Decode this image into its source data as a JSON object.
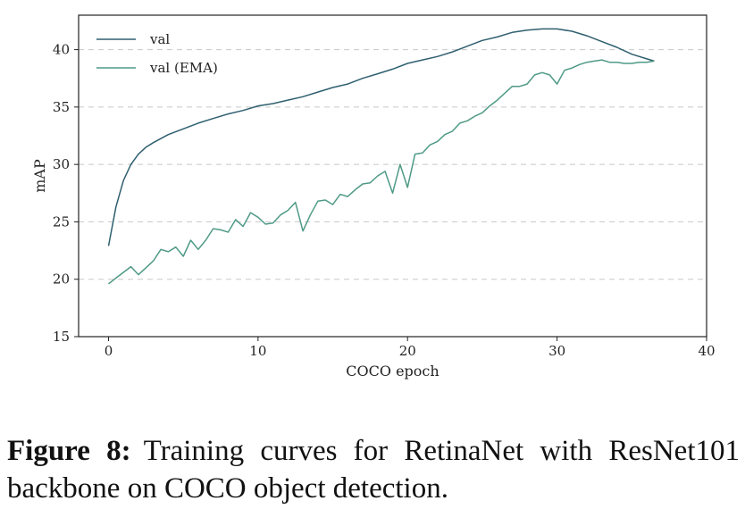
{
  "chart_data": {
    "type": "line",
    "xlabel": "COCO epoch",
    "ylabel": "mAP",
    "xlim": [
      -2,
      40
    ],
    "ylim": [
      15,
      43
    ],
    "xticks": [
      0,
      10,
      20,
      30,
      40
    ],
    "yticks": [
      15,
      20,
      25,
      30,
      35,
      40
    ],
    "grid": "horizontal dashed",
    "legend_position": "top-left",
    "series": [
      {
        "name": "val",
        "color": "#2f5f6f",
        "x": [
          0,
          0.5,
          1,
          1.5,
          2,
          2.5,
          3,
          4,
          5,
          6,
          7,
          8,
          9,
          10,
          11,
          12,
          13,
          14,
          15,
          16,
          17,
          18,
          19,
          20,
          21,
          22,
          23,
          24,
          25,
          26,
          27,
          28,
          29,
          30,
          31,
          32,
          33,
          34,
          35,
          36,
          36.5
        ],
        "y": [
          22.9,
          26.3,
          28.6,
          30.0,
          30.9,
          31.5,
          31.9,
          32.6,
          33.1,
          33.6,
          34.0,
          34.4,
          34.7,
          35.1,
          35.3,
          35.6,
          35.9,
          36.3,
          36.7,
          37.0,
          37.5,
          37.9,
          38.3,
          38.8,
          39.1,
          39.4,
          39.8,
          40.3,
          40.8,
          41.1,
          41.5,
          41.7,
          41.8,
          41.8,
          41.6,
          41.2,
          40.7,
          40.2,
          39.6,
          39.2,
          39.0
        ]
      },
      {
        "name": "val (EMA)",
        "color": "#4f9a86",
        "x": [
          0,
          0.5,
          1,
          1.5,
          2,
          2.5,
          3,
          3.5,
          4,
          4.5,
          5,
          5.5,
          6,
          6.5,
          7,
          7.5,
          8,
          8.5,
          9,
          9.5,
          10,
          10.5,
          11,
          11.5,
          12,
          12.5,
          13,
          13.5,
          14,
          14.5,
          15,
          15.5,
          16,
          16.5,
          17,
          17.5,
          18,
          18.5,
          19,
          19.5,
          20,
          20.5,
          21,
          21.5,
          22,
          22.5,
          23,
          23.5,
          24,
          24.5,
          25,
          25.5,
          26,
          26.5,
          27,
          27.5,
          28,
          28.5,
          29,
          29.5,
          30,
          30.5,
          31,
          31.5,
          32,
          32.5,
          33,
          33.5,
          34,
          34.5,
          35,
          35.5,
          36,
          36.5
        ],
        "y": [
          19.6,
          20.1,
          20.6,
          21.1,
          20.4,
          21.0,
          21.6,
          22.6,
          22.4,
          22.8,
          22.0,
          23.4,
          22.6,
          23.4,
          24.4,
          24.3,
          24.1,
          25.2,
          24.6,
          25.8,
          25.4,
          24.8,
          24.9,
          25.6,
          26.0,
          26.7,
          24.2,
          25.6,
          26.8,
          26.9,
          26.5,
          27.4,
          27.2,
          27.8,
          28.3,
          28.4,
          29.0,
          29.4,
          27.5,
          30.0,
          28.0,
          30.9,
          31.0,
          31.7,
          32.0,
          32.6,
          32.9,
          33.6,
          33.8,
          34.2,
          34.5,
          35.1,
          35.6,
          36.2,
          36.8,
          36.8,
          37.0,
          37.8,
          38.0,
          37.8,
          37.0,
          38.2,
          38.4,
          38.7,
          38.9,
          39.0,
          39.1,
          38.9,
          38.9,
          38.8,
          38.8,
          38.9,
          38.9,
          39.0
        ]
      }
    ]
  },
  "caption": {
    "label": "Figure 8:",
    "text": "Training curves for RetinaNet with ResNet101 backbone on COCO object detection."
  }
}
